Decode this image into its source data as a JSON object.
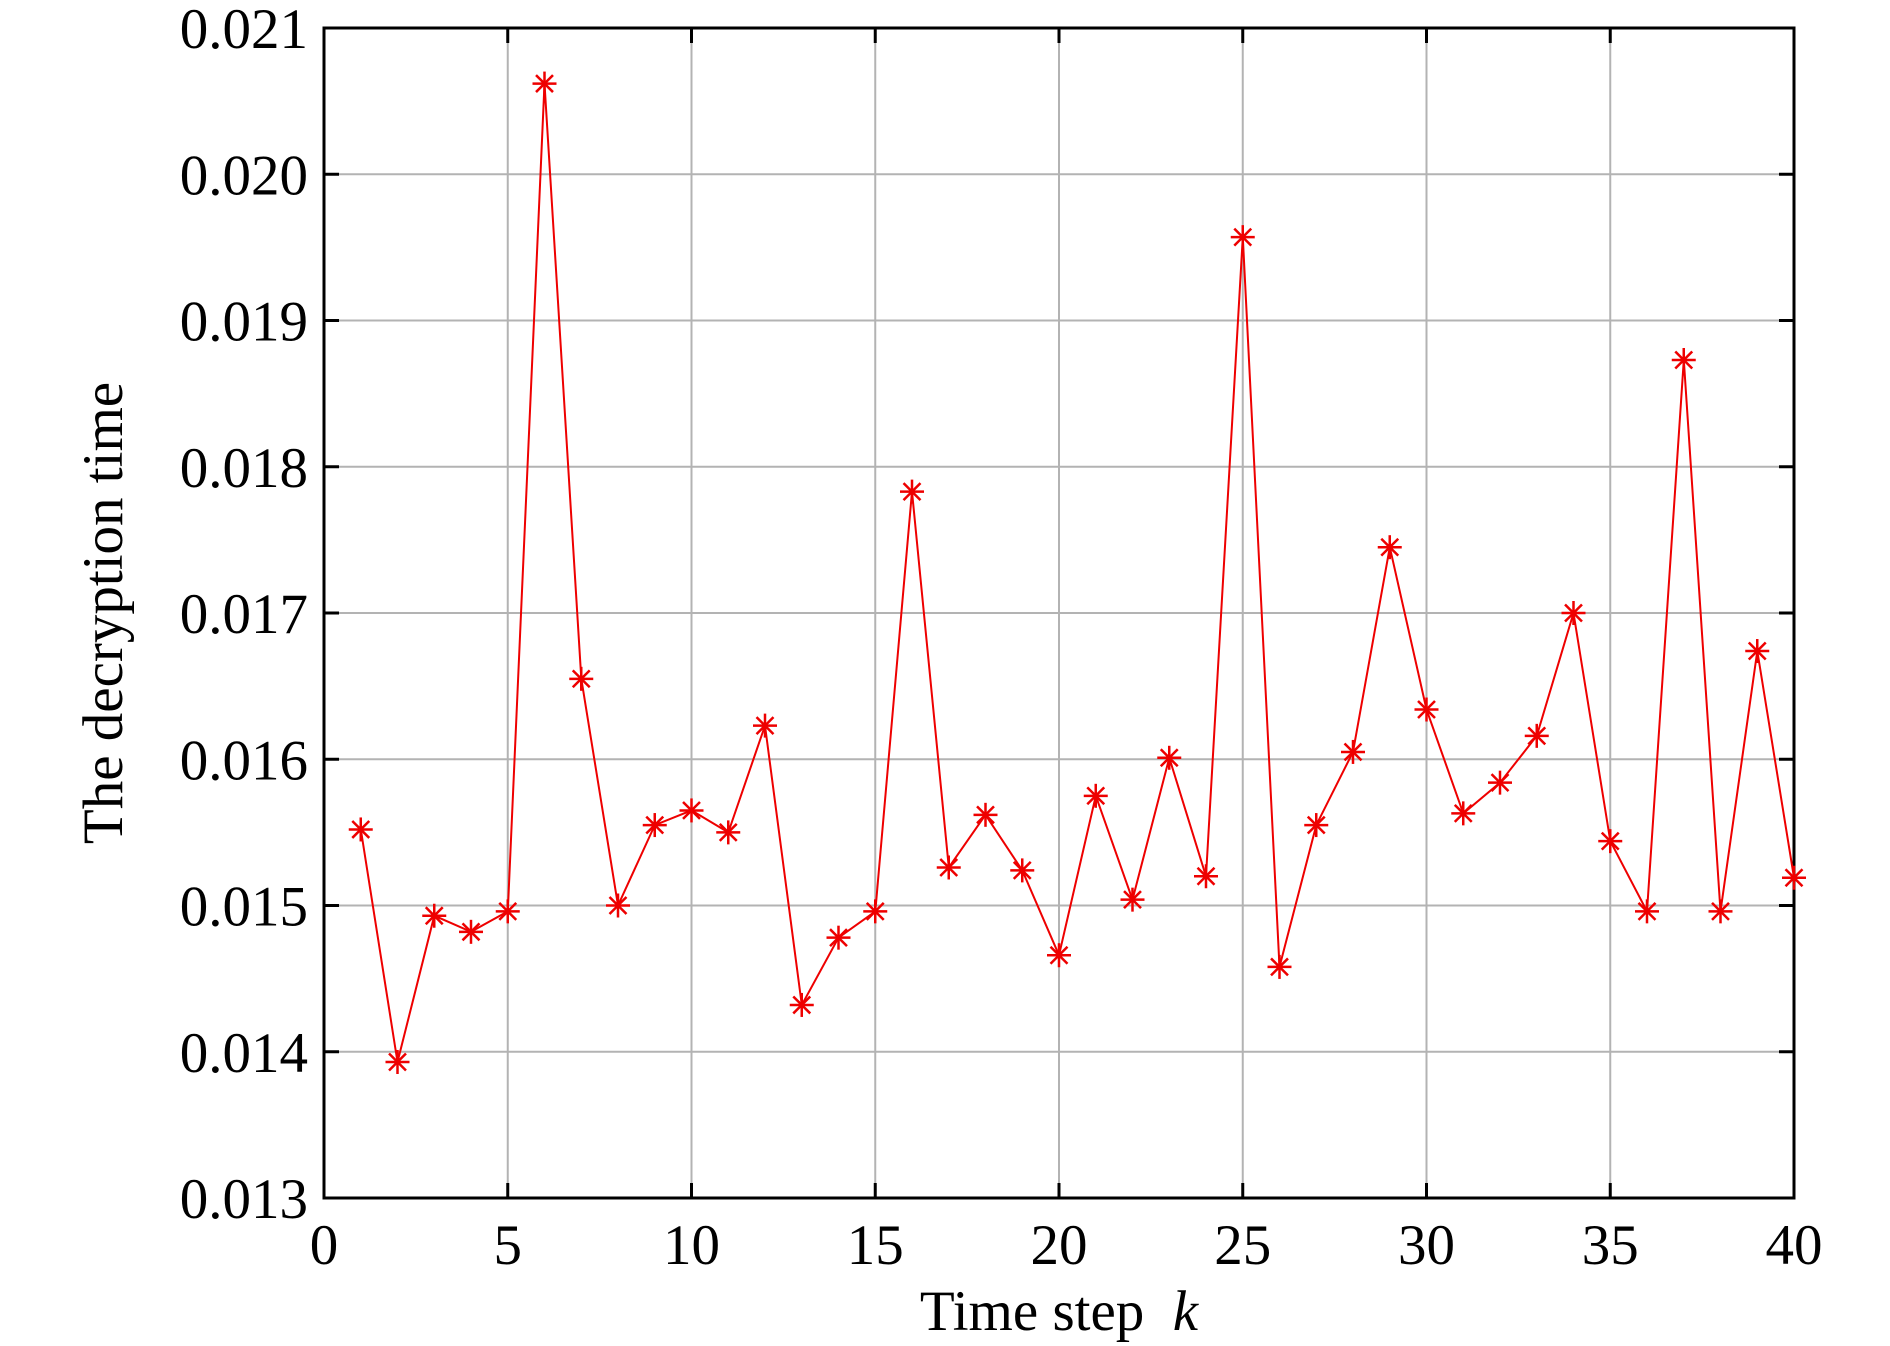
{
  "chart_data": {
    "type": "line",
    "title": "",
    "xlabel": "Time step",
    "xlabel_var": "k",
    "ylabel": "The decryption time",
    "xlim": [
      0,
      40
    ],
    "ylim": [
      0.013,
      0.021
    ],
    "xticks": [
      0,
      5,
      10,
      15,
      20,
      25,
      30,
      35,
      40
    ],
    "yticks": [
      0.013,
      0.014,
      0.015,
      0.016,
      0.017,
      0.018,
      0.019,
      0.02,
      0.021
    ],
    "xtick_labels": [
      "0",
      "5",
      "10",
      "15",
      "20",
      "25",
      "30",
      "35",
      "40"
    ],
    "ytick_labels": [
      "0.013",
      "0.014",
      "0.015",
      "0.016",
      "0.017",
      "0.018",
      "0.019",
      "0.020",
      "0.021"
    ],
    "grid": true,
    "legend": "none",
    "series": [
      {
        "color": "#ee0000",
        "marker": "asterisk",
        "x": [
          1,
          2,
          3,
          4,
          5,
          6,
          7,
          8,
          9,
          10,
          11,
          12,
          13,
          14,
          15,
          16,
          17,
          18,
          19,
          20,
          21,
          22,
          23,
          24,
          25,
          26,
          27,
          28,
          29,
          30,
          31,
          32,
          33,
          34,
          35,
          36,
          37,
          38,
          39,
          40
        ],
        "y": [
          0.01552,
          0.01393,
          0.01493,
          0.01482,
          0.01496,
          0.02062,
          0.01655,
          0.015,
          0.01555,
          0.01565,
          0.0155,
          0.01623,
          0.01432,
          0.01478,
          0.01496,
          0.01783,
          0.01526,
          0.01562,
          0.01524,
          0.01466,
          0.01575,
          0.01504,
          0.01601,
          0.0152,
          0.01957,
          0.01458,
          0.01555,
          0.01605,
          0.01745,
          0.01634,
          0.01563,
          0.01584,
          0.01616,
          0.017,
          0.01544,
          0.01496,
          0.01873,
          0.01496,
          0.01674,
          0.01519
        ]
      }
    ]
  }
}
